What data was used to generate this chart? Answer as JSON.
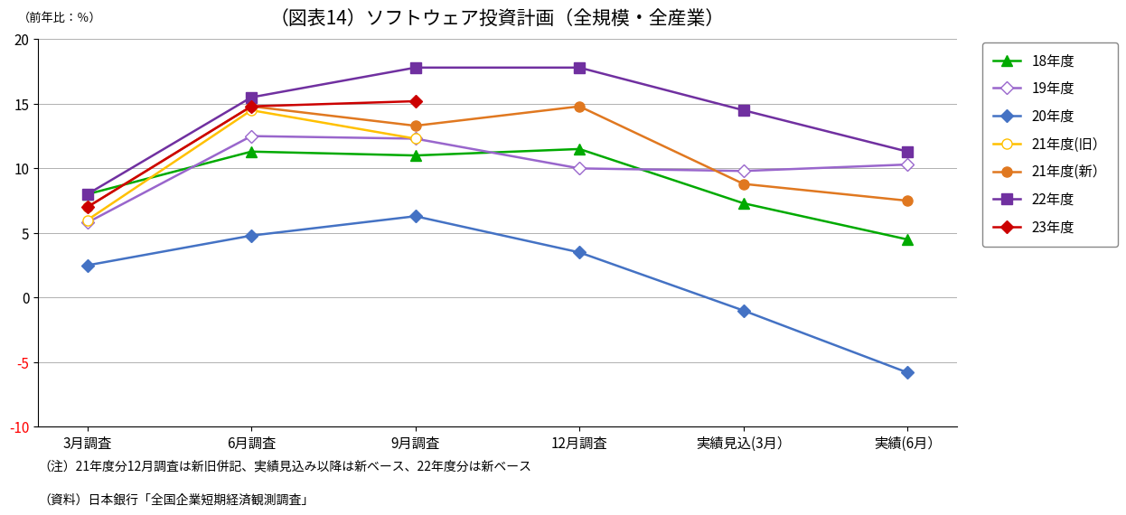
{
  "title": "（図表14）ソフトウェア投資計画（全規模・全産業）",
  "ylabel_annotation": "（前年比：％）",
  "x_labels": [
    "3月調査",
    "6月調査",
    "9月調査",
    "12月調査",
    "実績見込(3月）",
    "実績(6月）"
  ],
  "ylim": [
    -10,
    20
  ],
  "yticks": [
    -10,
    -5,
    0,
    5,
    10,
    15,
    20
  ],
  "series": [
    {
      "label": "18年度",
      "color": "#00aa00",
      "marker": "^",
      "marker_size": 8,
      "linewidth": 1.8,
      "marker_facecolor": "#00aa00",
      "values": [
        8.0,
        11.3,
        11.0,
        11.5,
        7.3,
        4.5
      ]
    },
    {
      "label": "19年度",
      "color": "#9966cc",
      "marker": "D",
      "marker_size": 7,
      "linewidth": 1.8,
      "marker_facecolor": "white",
      "values": [
        5.8,
        12.5,
        12.3,
        10.0,
        9.8,
        10.3
      ]
    },
    {
      "label": "20年度",
      "color": "#4472c4",
      "marker": "D",
      "marker_size": 7,
      "linewidth": 1.8,
      "marker_facecolor": "#4472c4",
      "values": [
        2.5,
        4.8,
        6.3,
        3.5,
        -1.0,
        -5.8
      ]
    },
    {
      "label": "21年度(旧）",
      "color": "#ffc000",
      "marker": "o",
      "marker_size": 8,
      "linewidth": 1.8,
      "marker_facecolor": "white",
      "values": [
        6.0,
        14.5,
        12.3,
        null,
        null,
        null
      ]
    },
    {
      "label": "21年度(新）",
      "color": "#e07820",
      "marker": "o",
      "marker_size": 8,
      "linewidth": 1.8,
      "marker_facecolor": "#e07820",
      "values": [
        7.0,
        14.8,
        13.3,
        14.8,
        8.8,
        7.5
      ]
    },
    {
      "label": "22年度",
      "color": "#7030a0",
      "marker": "s",
      "marker_size": 8,
      "linewidth": 1.8,
      "marker_facecolor": "#7030a0",
      "values": [
        8.0,
        15.5,
        17.8,
        17.8,
        14.5,
        11.3
      ]
    },
    {
      "label": "23年度",
      "color": "#cc0000",
      "marker": "D",
      "marker_size": 7,
      "linewidth": 1.8,
      "marker_facecolor": "#cc0000",
      "values": [
        7.0,
        14.8,
        15.2,
        null,
        null,
        null
      ]
    }
  ],
  "note1": "（注）21年度分12月調査は新旧併記、実績見込み以降は新ベース、22年度分は新ベース",
  "note2": "（資料）日本銀行「全国企業短期経済観測調査」",
  "background_color": "#ffffff",
  "grid_color": "#b0b0b0",
  "title_fontsize": 15,
  "tick_fontsize": 11,
  "legend_fontsize": 11,
  "note_fontsize": 10
}
